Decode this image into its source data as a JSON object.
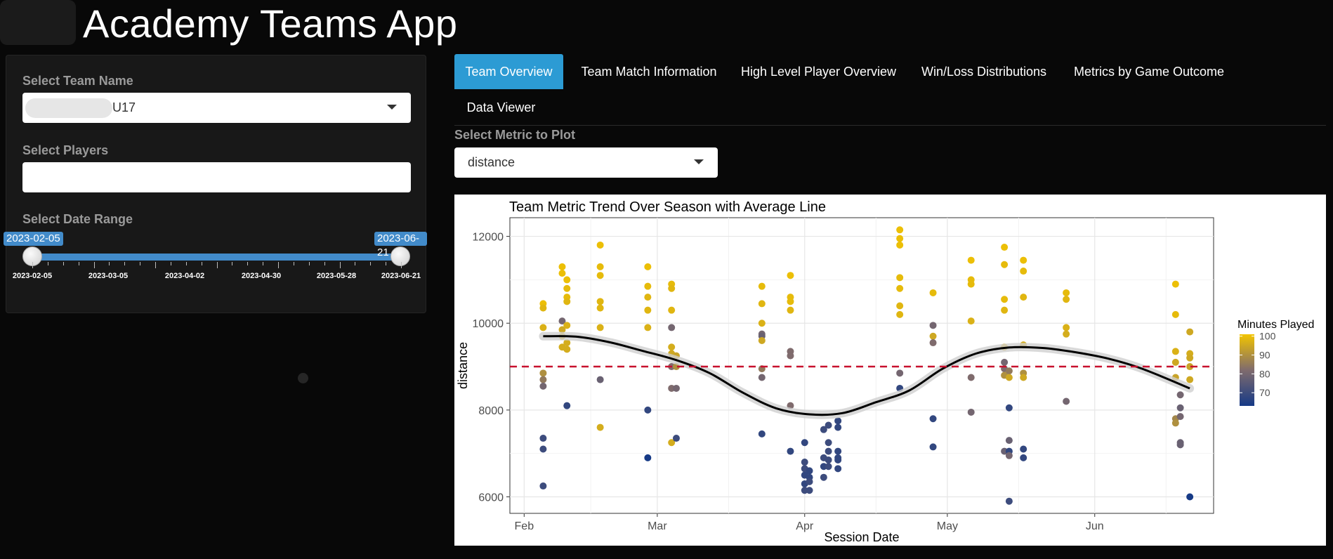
{
  "header": {
    "title": "Academy Teams App"
  },
  "sidebar": {
    "team_label": "Select Team Name",
    "team_value": "U17",
    "players_label": "Select Players",
    "players_value": "",
    "date_label": "Select Date Range",
    "date_from": "2023-02-05",
    "date_to": "2023-06-21",
    "grid_labels": [
      "2023-02-05",
      "2023-03-05",
      "2023-04-02",
      "2023-04-30",
      "2023-05-28",
      "2023-06-21"
    ]
  },
  "tabs": [
    {
      "label": "Team Overview",
      "active": true
    },
    {
      "label": "Team Match Information",
      "active": false
    },
    {
      "label": "High Level Player Overview",
      "active": false
    },
    {
      "label": "Win/Loss Distributions",
      "active": false
    },
    {
      "label": "Metrics by Game Outcome",
      "active": false
    },
    {
      "label": "Data Viewer",
      "active": false
    }
  ],
  "metric": {
    "label": "Select Metric to Plot",
    "value": "distance"
  },
  "colors": {
    "accent": "#2c9bd4",
    "slider": "#428bca",
    "avg_line": "#c8102e",
    "smooth": "#000000",
    "high": "#f2c400",
    "low": "#163a86"
  },
  "chart_data": {
    "type": "scatter",
    "title": "Team Metric Trend Over Season with Average Line",
    "xlabel": "Session Date",
    "ylabel": "distance",
    "x_ticks": [
      "Feb",
      "Mar",
      "Apr",
      "May",
      "Jun"
    ],
    "x_tick_dates": [
      "2023-02-01",
      "2023-03-01",
      "2023-04-01",
      "2023-05-01",
      "2023-06-01"
    ],
    "xlim": [
      "2023-01-29",
      "2023-06-26"
    ],
    "y_ticks": [
      6000,
      8000,
      10000,
      12000
    ],
    "ylim": [
      5620,
      12430
    ],
    "average_line": 9000,
    "color_scale": {
      "title": "Minutes Played",
      "min": 63,
      "max": 101,
      "ticks": [
        100,
        90,
        80,
        70
      ],
      "low_color": "#163a86",
      "mid_color": "#7f6b6d",
      "high_color": "#f2c400"
    },
    "smooth_curve": [
      {
        "date": "2023-02-05",
        "y": 9700
      },
      {
        "date": "2023-02-12",
        "y": 9690
      },
      {
        "date": "2023-02-19",
        "y": 9560
      },
      {
        "date": "2023-02-26",
        "y": 9360
      },
      {
        "date": "2023-03-05",
        "y": 9150
      },
      {
        "date": "2023-03-12",
        "y": 8850
      },
      {
        "date": "2023-03-19",
        "y": 8400
      },
      {
        "date": "2023-03-26",
        "y": 8040
      },
      {
        "date": "2023-04-02",
        "y": 7900
      },
      {
        "date": "2023-04-09",
        "y": 7930
      },
      {
        "date": "2023-04-16",
        "y": 8180
      },
      {
        "date": "2023-04-23",
        "y": 8450
      },
      {
        "date": "2023-04-30",
        "y": 8950
      },
      {
        "date": "2023-05-07",
        "y": 9300
      },
      {
        "date": "2023-05-14",
        "y": 9440
      },
      {
        "date": "2023-05-21",
        "y": 9430
      },
      {
        "date": "2023-05-28",
        "y": 9330
      },
      {
        "date": "2023-06-04",
        "y": 9180
      },
      {
        "date": "2023-06-11",
        "y": 8950
      },
      {
        "date": "2023-06-21",
        "y": 8500
      }
    ],
    "points": [
      {
        "date": "2023-02-05",
        "y": 10450,
        "m": 100
      },
      {
        "date": "2023-02-05",
        "y": 10350,
        "m": 98
      },
      {
        "date": "2023-02-05",
        "y": 9900,
        "m": 97
      },
      {
        "date": "2023-02-05",
        "y": 8850,
        "m": 90
      },
      {
        "date": "2023-02-05",
        "y": 8700,
        "m": 85
      },
      {
        "date": "2023-02-05",
        "y": 8550,
        "m": 80
      },
      {
        "date": "2023-02-05",
        "y": 7350,
        "m": 70
      },
      {
        "date": "2023-02-05",
        "y": 7100,
        "m": 70
      },
      {
        "date": "2023-02-05",
        "y": 6250,
        "m": 70
      },
      {
        "date": "2023-02-09",
        "y": 11300,
        "m": 100
      },
      {
        "date": "2023-02-09",
        "y": 11150,
        "m": 100
      },
      {
        "date": "2023-02-09",
        "y": 10050,
        "m": 80
      },
      {
        "date": "2023-02-09",
        "y": 9850,
        "m": 95
      },
      {
        "date": "2023-02-09",
        "y": 9700,
        "m": 95
      },
      {
        "date": "2023-02-09",
        "y": 9450,
        "m": 96
      },
      {
        "date": "2023-02-10",
        "y": 11000,
        "m": 100
      },
      {
        "date": "2023-02-10",
        "y": 10800,
        "m": 99
      },
      {
        "date": "2023-02-10",
        "y": 10600,
        "m": 99
      },
      {
        "date": "2023-02-10",
        "y": 10500,
        "m": 98
      },
      {
        "date": "2023-02-10",
        "y": 9950,
        "m": 97
      },
      {
        "date": "2023-02-10",
        "y": 9550,
        "m": 96
      },
      {
        "date": "2023-02-10",
        "y": 9400,
        "m": 96
      },
      {
        "date": "2023-02-10",
        "y": 8100,
        "m": 68
      },
      {
        "date": "2023-02-17",
        "y": 11800,
        "m": 100
      },
      {
        "date": "2023-02-17",
        "y": 11300,
        "m": 99
      },
      {
        "date": "2023-02-17",
        "y": 11100,
        "m": 99
      },
      {
        "date": "2023-02-17",
        "y": 10500,
        "m": 98
      },
      {
        "date": "2023-02-17",
        "y": 10350,
        "m": 98
      },
      {
        "date": "2023-02-17",
        "y": 9900,
        "m": 97
      },
      {
        "date": "2023-02-17",
        "y": 8700,
        "m": 78
      },
      {
        "date": "2023-02-17",
        "y": 7600,
        "m": 96
      },
      {
        "date": "2023-02-27",
        "y": 11300,
        "m": 100
      },
      {
        "date": "2023-02-27",
        "y": 10850,
        "m": 99
      },
      {
        "date": "2023-02-27",
        "y": 10600,
        "m": 98
      },
      {
        "date": "2023-02-27",
        "y": 10300,
        "m": 98
      },
      {
        "date": "2023-02-27",
        "y": 9900,
        "m": 97
      },
      {
        "date": "2023-02-27",
        "y": 8000,
        "m": 68
      },
      {
        "date": "2023-02-27",
        "y": 6900,
        "m": 63
      },
      {
        "date": "2023-03-04",
        "y": 10900,
        "m": 99
      },
      {
        "date": "2023-03-04",
        "y": 10800,
        "m": 98
      },
      {
        "date": "2023-03-04",
        "y": 10300,
        "m": 98
      },
      {
        "date": "2023-03-04",
        "y": 9900,
        "m": 80
      },
      {
        "date": "2023-03-04",
        "y": 9450,
        "m": 96
      },
      {
        "date": "2023-03-04",
        "y": 9300,
        "m": 95
      },
      {
        "date": "2023-03-04",
        "y": 9000,
        "m": 82
      },
      {
        "date": "2023-03-04",
        "y": 8500,
        "m": 82
      },
      {
        "date": "2023-03-04",
        "y": 7250,
        "m": 96
      },
      {
        "date": "2023-03-05",
        "y": 9250,
        "m": 94
      },
      {
        "date": "2023-03-05",
        "y": 9000,
        "m": 90
      },
      {
        "date": "2023-03-05",
        "y": 8500,
        "m": 80
      },
      {
        "date": "2023-03-05",
        "y": 7350,
        "m": 70
      },
      {
        "date": "2023-03-23",
        "y": 10850,
        "m": 99
      },
      {
        "date": "2023-03-23",
        "y": 10450,
        "m": 98
      },
      {
        "date": "2023-03-23",
        "y": 10000,
        "m": 97
      },
      {
        "date": "2023-03-23",
        "y": 9750,
        "m": 80
      },
      {
        "date": "2023-03-23",
        "y": 9700,
        "m": 78
      },
      {
        "date": "2023-03-23",
        "y": 9600,
        "m": 95
      },
      {
        "date": "2023-03-23",
        "y": 8950,
        "m": 85
      },
      {
        "date": "2023-03-23",
        "y": 8750,
        "m": 80
      },
      {
        "date": "2023-03-23",
        "y": 7450,
        "m": 68
      },
      {
        "date": "2023-03-29",
        "y": 11100,
        "m": 100
      },
      {
        "date": "2023-03-29",
        "y": 10600,
        "m": 99
      },
      {
        "date": "2023-03-29",
        "y": 10500,
        "m": 99
      },
      {
        "date": "2023-03-29",
        "y": 10300,
        "m": 98
      },
      {
        "date": "2023-03-29",
        "y": 9350,
        "m": 82
      },
      {
        "date": "2023-03-29",
        "y": 9250,
        "m": 82
      },
      {
        "date": "2023-03-29",
        "y": 8100,
        "m": 82
      },
      {
        "date": "2023-03-29",
        "y": 7050,
        "m": 68
      },
      {
        "date": "2023-04-01",
        "y": 7250,
        "m": 68
      },
      {
        "date": "2023-04-01",
        "y": 6800,
        "m": 70
      },
      {
        "date": "2023-04-01",
        "y": 6650,
        "m": 70
      },
      {
        "date": "2023-04-01",
        "y": 6500,
        "m": 68
      },
      {
        "date": "2023-04-01",
        "y": 6300,
        "m": 68
      },
      {
        "date": "2023-04-01",
        "y": 6150,
        "m": 70
      },
      {
        "date": "2023-04-02",
        "y": 6600,
        "m": 68
      },
      {
        "date": "2023-04-02",
        "y": 6450,
        "m": 68
      },
      {
        "date": "2023-04-02",
        "y": 6350,
        "m": 70
      },
      {
        "date": "2023-04-02",
        "y": 6150,
        "m": 70
      },
      {
        "date": "2023-04-05",
        "y": 7550,
        "m": 70
      },
      {
        "date": "2023-04-05",
        "y": 6900,
        "m": 70
      },
      {
        "date": "2023-04-05",
        "y": 6700,
        "m": 68
      },
      {
        "date": "2023-04-05",
        "y": 6450,
        "m": 70
      },
      {
        "date": "2023-04-06",
        "y": 7650,
        "m": 70
      },
      {
        "date": "2023-04-06",
        "y": 7250,
        "m": 70
      },
      {
        "date": "2023-04-06",
        "y": 7050,
        "m": 70
      },
      {
        "date": "2023-04-06",
        "y": 6850,
        "m": 70
      },
      {
        "date": "2023-04-06",
        "y": 6700,
        "m": 70
      },
      {
        "date": "2023-04-08",
        "y": 7750,
        "m": 68
      },
      {
        "date": "2023-04-08",
        "y": 7600,
        "m": 68
      },
      {
        "date": "2023-04-08",
        "y": 7050,
        "m": 68
      },
      {
        "date": "2023-04-08",
        "y": 6900,
        "m": 68
      },
      {
        "date": "2023-04-08",
        "y": 6850,
        "m": 68
      },
      {
        "date": "2023-04-08",
        "y": 6650,
        "m": 68
      },
      {
        "date": "2023-04-21",
        "y": 12150,
        "m": 100
      },
      {
        "date": "2023-04-21",
        "y": 11950,
        "m": 100
      },
      {
        "date": "2023-04-21",
        "y": 11800,
        "m": 100
      },
      {
        "date": "2023-04-21",
        "y": 11050,
        "m": 99
      },
      {
        "date": "2023-04-21",
        "y": 10800,
        "m": 99
      },
      {
        "date": "2023-04-21",
        "y": 10400,
        "m": 98
      },
      {
        "date": "2023-04-21",
        "y": 10200,
        "m": 98
      },
      {
        "date": "2023-04-21",
        "y": 8850,
        "m": 80
      },
      {
        "date": "2023-04-21",
        "y": 8500,
        "m": 68
      },
      {
        "date": "2023-04-28",
        "y": 10700,
        "m": 99
      },
      {
        "date": "2023-04-28",
        "y": 9950,
        "m": 80
      },
      {
        "date": "2023-04-28",
        "y": 9700,
        "m": 95
      },
      {
        "date": "2023-04-28",
        "y": 9550,
        "m": 82
      },
      {
        "date": "2023-04-28",
        "y": 7800,
        "m": 68
      },
      {
        "date": "2023-04-28",
        "y": 7150,
        "m": 68
      },
      {
        "date": "2023-05-06",
        "y": 11450,
        "m": 100
      },
      {
        "date": "2023-05-06",
        "y": 11000,
        "m": 99
      },
      {
        "date": "2023-05-06",
        "y": 10900,
        "m": 99
      },
      {
        "date": "2023-05-06",
        "y": 10050,
        "m": 97
      },
      {
        "date": "2023-05-06",
        "y": 8750,
        "m": 82
      },
      {
        "date": "2023-05-06",
        "y": 7950,
        "m": 80
      },
      {
        "date": "2023-05-13",
        "y": 11750,
        "m": 100
      },
      {
        "date": "2023-05-13",
        "y": 11350,
        "m": 99
      },
      {
        "date": "2023-05-13",
        "y": 10550,
        "m": 99
      },
      {
        "date": "2023-05-13",
        "y": 10300,
        "m": 98
      },
      {
        "date": "2023-05-13",
        "y": 9450,
        "m": 96
      },
      {
        "date": "2023-05-13",
        "y": 9100,
        "m": 80
      },
      {
        "date": "2023-05-13",
        "y": 8950,
        "m": 82
      },
      {
        "date": "2023-05-13",
        "y": 8800,
        "m": 90
      },
      {
        "date": "2023-05-13",
        "y": 7050,
        "m": 78
      },
      {
        "date": "2023-05-14",
        "y": 8900,
        "m": 85
      },
      {
        "date": "2023-05-14",
        "y": 8750,
        "m": 95
      },
      {
        "date": "2023-05-14",
        "y": 8050,
        "m": 68
      },
      {
        "date": "2023-05-14",
        "y": 7300,
        "m": 78
      },
      {
        "date": "2023-05-14",
        "y": 7050,
        "m": 68
      },
      {
        "date": "2023-05-14",
        "y": 6950,
        "m": 80
      },
      {
        "date": "2023-05-14",
        "y": 5900,
        "m": 70
      },
      {
        "date": "2023-05-17",
        "y": 11450,
        "m": 100
      },
      {
        "date": "2023-05-17",
        "y": 11200,
        "m": 99
      },
      {
        "date": "2023-05-17",
        "y": 10600,
        "m": 98
      },
      {
        "date": "2023-05-17",
        "y": 9500,
        "m": 96
      },
      {
        "date": "2023-05-17",
        "y": 8850,
        "m": 90
      },
      {
        "date": "2023-05-17",
        "y": 8750,
        "m": 95
      },
      {
        "date": "2023-05-17",
        "y": 7100,
        "m": 68
      },
      {
        "date": "2023-05-17",
        "y": 6900,
        "m": 68
      },
      {
        "date": "2023-05-26",
        "y": 10700,
        "m": 99
      },
      {
        "date": "2023-05-26",
        "y": 10550,
        "m": 98
      },
      {
        "date": "2023-05-26",
        "y": 9900,
        "m": 97
      },
      {
        "date": "2023-05-26",
        "y": 9750,
        "m": 96
      },
      {
        "date": "2023-05-26",
        "y": 8200,
        "m": 80
      },
      {
        "date": "2023-06-18",
        "y": 10900,
        "m": 100
      },
      {
        "date": "2023-06-18",
        "y": 10200,
        "m": 99
      },
      {
        "date": "2023-06-18",
        "y": 9350,
        "m": 97
      },
      {
        "date": "2023-06-18",
        "y": 9100,
        "m": 95
      },
      {
        "date": "2023-06-18",
        "y": 8750,
        "m": 94
      },
      {
        "date": "2023-06-18",
        "y": 7800,
        "m": 88
      },
      {
        "date": "2023-06-18",
        "y": 7700,
        "m": 90
      },
      {
        "date": "2023-06-19",
        "y": 8350,
        "m": 80
      },
      {
        "date": "2023-06-19",
        "y": 8050,
        "m": 78
      },
      {
        "date": "2023-06-19",
        "y": 7850,
        "m": 80
      },
      {
        "date": "2023-06-19",
        "y": 7250,
        "m": 78
      },
      {
        "date": "2023-06-19",
        "y": 7200,
        "m": 78
      },
      {
        "date": "2023-06-21",
        "y": 9800,
        "m": 95
      },
      {
        "date": "2023-06-21",
        "y": 9300,
        "m": 96
      },
      {
        "date": "2023-06-21",
        "y": 9200,
        "m": 95
      },
      {
        "date": "2023-06-21",
        "y": 9000,
        "m": 94
      },
      {
        "date": "2023-06-21",
        "y": 8700,
        "m": 95
      },
      {
        "date": "2023-06-21",
        "y": 6000,
        "m": 63
      }
    ]
  }
}
